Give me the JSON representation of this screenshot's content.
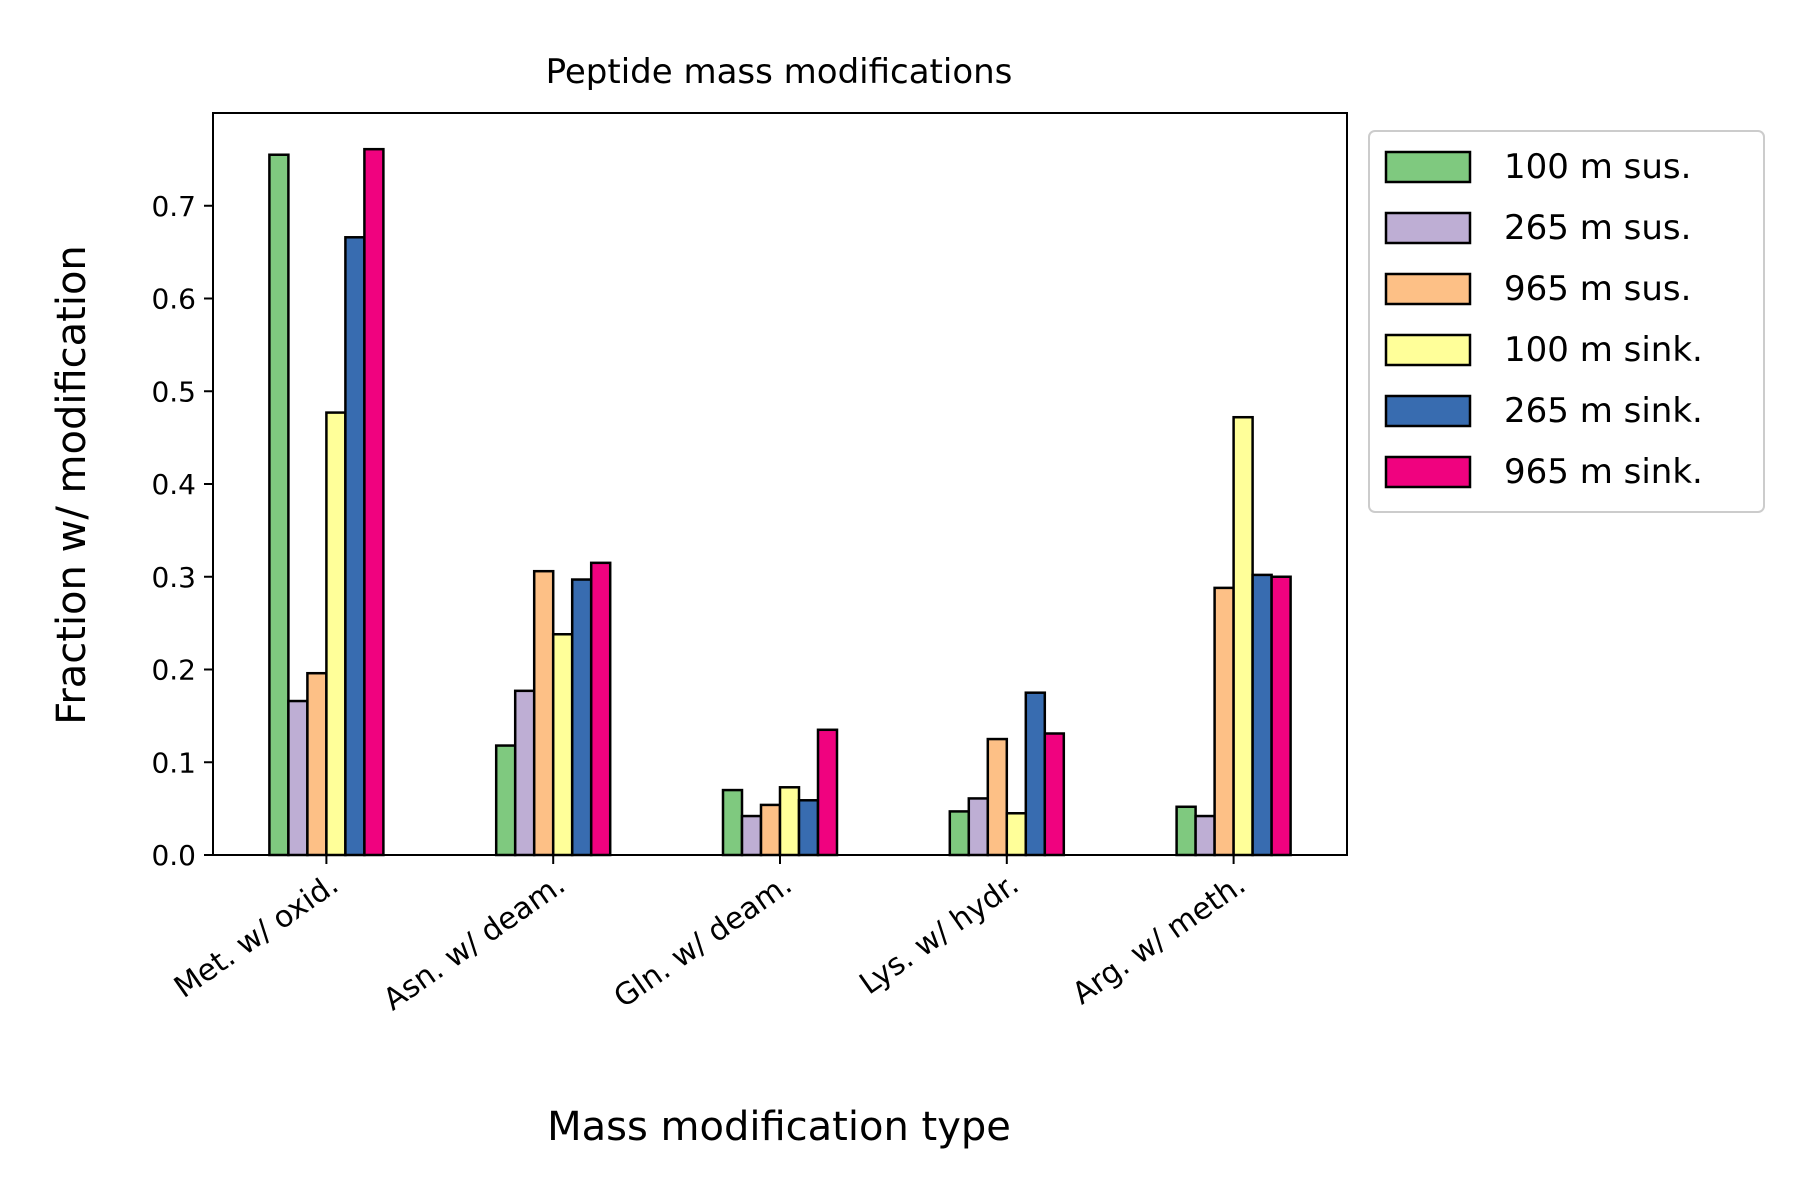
{
  "chart_data": {
    "type": "bar",
    "title": "Peptide mass modifications",
    "xlabel": "Mass modification type",
    "ylabel": "Fraction w/ modification",
    "categories": [
      "Met. w/ oxid.",
      "Asn. w/ deam.",
      "Gln. w/ deam.",
      "Lys. w/ hydr.",
      "Arg. w/ meth."
    ],
    "ylim": [
      0,
      0.8
    ],
    "yticks": [
      "0.0",
      "0.1",
      "0.2",
      "0.3",
      "0.4",
      "0.5",
      "0.6",
      "0.7"
    ],
    "legend_position": "outside right, top",
    "grid": false,
    "series": [
      {
        "name": "100 m sus.",
        "color": "#7fc97f",
        "values": [
          0.755,
          0.118,
          0.07,
          0.047,
          0.052
        ]
      },
      {
        "name": "265 m sus.",
        "color": "#beaed4",
        "values": [
          0.166,
          0.177,
          0.042,
          0.061,
          0.042
        ]
      },
      {
        "name": "965 m sus.",
        "color": "#fdc086",
        "values": [
          0.196,
          0.306,
          0.054,
          0.125,
          0.288
        ]
      },
      {
        "name": "100 m sink.",
        "color": "#ffff99",
        "values": [
          0.477,
          0.238,
          0.073,
          0.045,
          0.472
        ]
      },
      {
        "name": "265 m sink.",
        "color": "#386cb0",
        "values": [
          0.666,
          0.297,
          0.059,
          0.175,
          0.302
        ]
      },
      {
        "name": "965 m sink.",
        "color": "#f0027f",
        "values": [
          0.761,
          0.315,
          0.135,
          0.131,
          0.3
        ]
      }
    ]
  }
}
